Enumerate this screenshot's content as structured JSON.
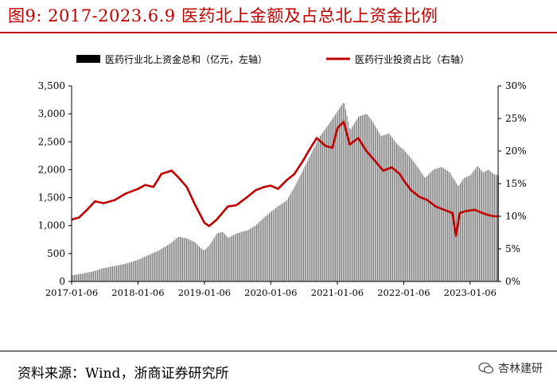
{
  "figure": {
    "title": "图9:  2017-2023.6.9 医药北上金额及占总北上资金比例",
    "source": "资料来源：Wind，浙商证券研究所",
    "watermark": "杏林建研",
    "watermark_icon": "wechat-icon"
  },
  "colors": {
    "title": "#c00000",
    "bars": "#666666",
    "line": "#c00000",
    "axis": "#000000"
  },
  "chart_data": {
    "type": "bar",
    "legend": {
      "position": "top",
      "bar_label": "医药行业北上资金总和（亿元，左轴）",
      "line_label": "医药行业投资占比（右轴）"
    },
    "x_tick_labels": [
      "2017-01-06",
      "2018-01-06",
      "2019-01-06",
      "2020-01-06",
      "2021-01-06",
      "2022-01-06",
      "2023-01-06"
    ],
    "x_range": [
      "2017-01-06",
      "2023-06-09"
    ],
    "y_left": {
      "range": [
        0,
        3500
      ],
      "ticks": [
        "0",
        "500",
        "1,000",
        "1,500",
        "2,000",
        "2,500",
        "3,000",
        "3,500"
      ]
    },
    "y_right": {
      "range": [
        0,
        30
      ],
      "ticks": [
        "0%",
        "5%",
        "10%",
        "15%",
        "20%",
        "25%",
        "30%"
      ]
    },
    "grid": false,
    "series": [
      {
        "kind": "bar",
        "axis": "left",
        "points": [
          [
            "2017-01-06",
            110
          ],
          [
            "2017-03-01",
            140
          ],
          [
            "2017-05-01",
            180
          ],
          [
            "2017-07-01",
            240
          ],
          [
            "2017-09-01",
            280
          ],
          [
            "2017-11-01",
            320
          ],
          [
            "2018-01-06",
            390
          ],
          [
            "2018-03-01",
            470
          ],
          [
            "2018-05-01",
            560
          ],
          [
            "2018-07-01",
            680
          ],
          [
            "2018-08-15",
            800
          ],
          [
            "2018-10-01",
            770
          ],
          [
            "2018-11-15",
            700
          ],
          [
            "2018-12-20",
            580
          ],
          [
            "2019-01-06",
            560
          ],
          [
            "2019-02-01",
            650
          ],
          [
            "2019-03-15",
            860
          ],
          [
            "2019-04-15",
            890
          ],
          [
            "2019-05-15",
            780
          ],
          [
            "2019-07-01",
            860
          ],
          [
            "2019-09-01",
            920
          ],
          [
            "2019-10-15",
            1010
          ],
          [
            "2019-12-01",
            1150
          ],
          [
            "2020-01-06",
            1250
          ],
          [
            "2020-02-15",
            1350
          ],
          [
            "2020-04-01",
            1450
          ],
          [
            "2020-05-15",
            1700
          ],
          [
            "2020-07-01",
            2000
          ],
          [
            "2020-08-15",
            2300
          ],
          [
            "2020-10-01",
            2600
          ],
          [
            "2020-11-15",
            2800
          ],
          [
            "2021-01-06",
            3050
          ],
          [
            "2021-02-10",
            3220
          ],
          [
            "2021-03-15",
            2700
          ],
          [
            "2021-05-01",
            2950
          ],
          [
            "2021-06-15",
            3000
          ],
          [
            "2021-07-20",
            2850
          ],
          [
            "2021-09-01",
            2600
          ],
          [
            "2021-10-15",
            2650
          ],
          [
            "2021-12-01",
            2450
          ],
          [
            "2022-01-06",
            2350
          ],
          [
            "2022-02-15",
            2200
          ],
          [
            "2022-04-01",
            2000
          ],
          [
            "2022-05-01",
            1850
          ],
          [
            "2022-06-15",
            2000
          ],
          [
            "2022-08-01",
            2050
          ],
          [
            "2022-09-15",
            1950
          ],
          [
            "2022-10-31",
            1700
          ],
          [
            "2022-12-01",
            1850
          ],
          [
            "2023-01-06",
            1900
          ],
          [
            "2023-02-15",
            2070
          ],
          [
            "2023-03-15",
            1950
          ],
          [
            "2023-04-15",
            2000
          ],
          [
            "2023-05-15",
            1920
          ],
          [
            "2023-06-09",
            1900
          ]
        ]
      },
      {
        "kind": "line",
        "axis": "right",
        "points": [
          [
            "2017-01-06",
            9.5
          ],
          [
            "2017-02-15",
            9.8
          ],
          [
            "2017-04-01",
            11.0
          ],
          [
            "2017-05-15",
            12.3
          ],
          [
            "2017-07-01",
            12.0
          ],
          [
            "2017-09-01",
            12.5
          ],
          [
            "2017-11-01",
            13.5
          ],
          [
            "2018-01-06",
            14.2
          ],
          [
            "2018-02-15",
            14.8
          ],
          [
            "2018-04-01",
            14.5
          ],
          [
            "2018-05-15",
            16.5
          ],
          [
            "2018-07-10",
            17.0
          ],
          [
            "2018-08-15",
            16.0
          ],
          [
            "2018-10-01",
            14.5
          ],
          [
            "2018-11-15",
            11.8
          ],
          [
            "2019-01-06",
            9.0
          ],
          [
            "2019-02-01",
            8.5
          ],
          [
            "2019-03-15",
            9.5
          ],
          [
            "2019-05-15",
            11.5
          ],
          [
            "2019-07-01",
            11.7
          ],
          [
            "2019-09-01",
            13.0
          ],
          [
            "2019-10-15",
            14.0
          ],
          [
            "2019-12-01",
            14.5
          ],
          [
            "2020-01-06",
            14.7
          ],
          [
            "2020-02-15",
            14.2
          ],
          [
            "2020-04-01",
            15.5
          ],
          [
            "2020-05-15",
            16.5
          ],
          [
            "2020-07-01",
            18.5
          ],
          [
            "2020-08-01",
            20.0
          ],
          [
            "2020-09-15",
            22.0
          ],
          [
            "2020-11-01",
            20.8
          ],
          [
            "2020-12-10",
            20.5
          ],
          [
            "2021-01-06",
            23.5
          ],
          [
            "2021-02-10",
            24.5
          ],
          [
            "2021-03-15",
            21.0
          ],
          [
            "2021-05-01",
            22.0
          ],
          [
            "2021-06-15",
            20.0
          ],
          [
            "2021-08-01",
            18.5
          ],
          [
            "2021-09-15",
            17.0
          ],
          [
            "2021-11-01",
            17.5
          ],
          [
            "2021-12-15",
            16.5
          ],
          [
            "2022-01-06",
            15.5
          ],
          [
            "2022-02-15",
            14.0
          ],
          [
            "2022-04-01",
            13.0
          ],
          [
            "2022-05-15",
            12.5
          ],
          [
            "2022-07-01",
            11.5
          ],
          [
            "2022-08-15",
            11.0
          ],
          [
            "2022-10-01",
            10.5
          ],
          [
            "2022-10-20",
            7.0
          ],
          [
            "2022-11-10",
            10.5
          ],
          [
            "2022-12-15",
            10.8
          ],
          [
            "2023-02-01",
            11.0
          ],
          [
            "2023-03-15",
            10.5
          ],
          [
            "2023-04-15",
            10.2
          ],
          [
            "2023-05-15",
            10.0
          ],
          [
            "2023-06-09",
            10.0
          ]
        ]
      }
    ]
  }
}
